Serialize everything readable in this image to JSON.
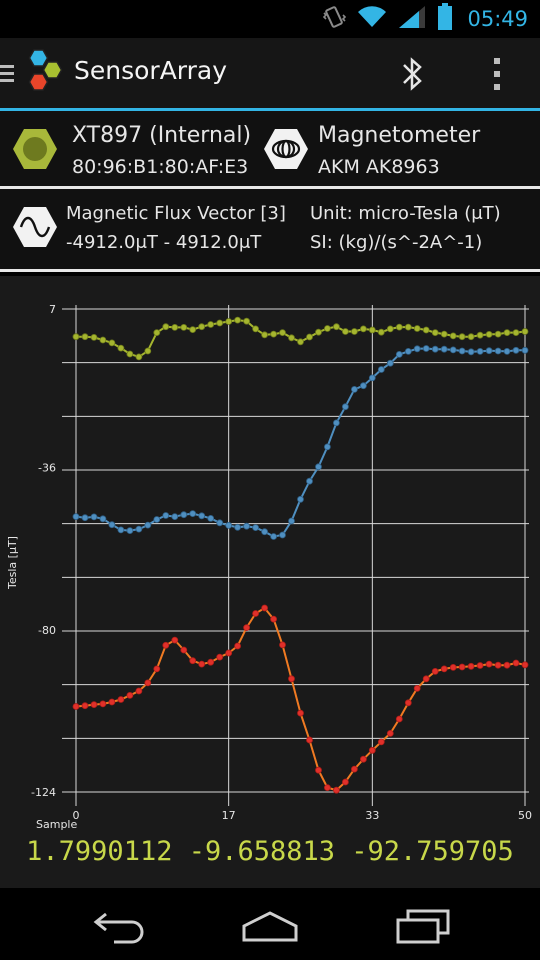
{
  "status_bar": {
    "time": "05:49",
    "icons": [
      "vibrate-icon",
      "wifi-icon",
      "signal-icon",
      "battery-icon"
    ]
  },
  "action_bar": {
    "title": "SensorArray",
    "icons": [
      "menu-icon",
      "app-logo-icon",
      "bluetooth-icon",
      "overflow-menu-icon"
    ]
  },
  "device": {
    "name": "XT897 (Internal)",
    "address": "80:96:B1:80:AF:E3"
  },
  "sensor": {
    "name": "Magnetometer",
    "model": "AKM AK8963"
  },
  "measurement": {
    "name": "Magnetic Flux Vector [3]",
    "range": "-4912.0μT - 4912.0μT",
    "unit": "Unit: micro-Tesla (μT)",
    "si": "SI: (kg)/(s^-2A^-1)"
  },
  "readout": "1.7990112 -9.658813 -92.759705",
  "colors": {
    "accent": "#33b5e5",
    "series_x": "#a5b52f",
    "series_y": "#4f8fc0",
    "series_z": "#f07a22",
    "marker_z": "#e0302a"
  },
  "chart_data": {
    "type": "line",
    "xlabel": "Sample",
    "ylabel": "Tesla [μT]",
    "xlim": [
      0,
      50
    ],
    "ylim": [
      -124,
      7
    ],
    "xticks": [
      0,
      17,
      33,
      50
    ],
    "yticks": [
      7,
      -36,
      -80,
      -124
    ],
    "x": [
      0,
      1,
      2,
      3,
      4,
      5,
      6,
      7,
      8,
      9,
      10,
      11,
      12,
      13,
      14,
      15,
      16,
      17,
      18,
      19,
      20,
      21,
      22,
      23,
      24,
      25,
      26,
      27,
      28,
      29,
      30,
      31,
      32,
      33,
      34,
      35,
      36,
      37,
      38,
      39,
      40,
      41,
      42,
      43,
      44,
      45,
      46,
      47,
      48,
      49,
      50
    ],
    "series": [
      {
        "values": [
          -0.5,
          -0.5,
          -0.7,
          -1.4,
          -2.2,
          -3.6,
          -5.2,
          -6.0,
          -4.4,
          0.6,
          2.2,
          2.0,
          2.0,
          1.4,
          2.2,
          2.8,
          3.2,
          3.6,
          4.0,
          3.7,
          1.6,
          0.0,
          0.2,
          0.6,
          -0.8,
          -1.9,
          -0.6,
          0.7,
          1.7,
          2.2,
          0.9,
          0.9,
          1.6,
          1.3,
          0.7,
          1.6,
          2.1,
          2.1,
          1.7,
          1.3,
          0.6,
          0.2,
          -0.3,
          -0.5,
          -0.5,
          -0.1,
          0.1,
          0.2,
          0.6,
          0.6,
          0.9
        ]
      },
      {
        "values": [
          -49.3,
          -49.6,
          -49.4,
          -49.9,
          -51.5,
          -52.9,
          -53.1,
          -52.7,
          -51.6,
          -50.1,
          -49.0,
          -49.3,
          -48.8,
          -48.5,
          -49.1,
          -49.8,
          -51.0,
          -51.7,
          -52.2,
          -51.9,
          -52.3,
          -53.4,
          -54.7,
          -54.3,
          -50.5,
          -44.6,
          -39.7,
          -35.8,
          -30.4,
          -23.9,
          -19.5,
          -14.8,
          -13.8,
          -11.7,
          -9.4,
          -7.7,
          -5.3,
          -4.5,
          -3.8,
          -3.7,
          -3.9,
          -3.9,
          -4.1,
          -4.4,
          -4.6,
          -4.5,
          -4.3,
          -4.4,
          -4.5,
          -4.2,
          -4.2
        ]
      },
      {
        "values": [
          -100.8,
          -100.6,
          -100.3,
          -100.1,
          -99.6,
          -98.9,
          -97.8,
          -96.6,
          -94.4,
          -90.6,
          -84.2,
          -82.8,
          -85.5,
          -88.4,
          -89.3,
          -88.8,
          -87.4,
          -86.3,
          -84.4,
          -79.4,
          -75.6,
          -74.1,
          -77.1,
          -84.1,
          -93.3,
          -102.6,
          -109.9,
          -118.1,
          -122.8,
          -123.5,
          -121.3,
          -117.8,
          -115.1,
          -112.7,
          -110.4,
          -108.1,
          -104.2,
          -99.8,
          -95.9,
          -93.3,
          -91.3,
          -90.6,
          -90.2,
          -90.1,
          -89.9,
          -89.7,
          -89.3,
          -89.6,
          -89.6,
          -89.0,
          -89.5
        ]
      }
    ]
  }
}
